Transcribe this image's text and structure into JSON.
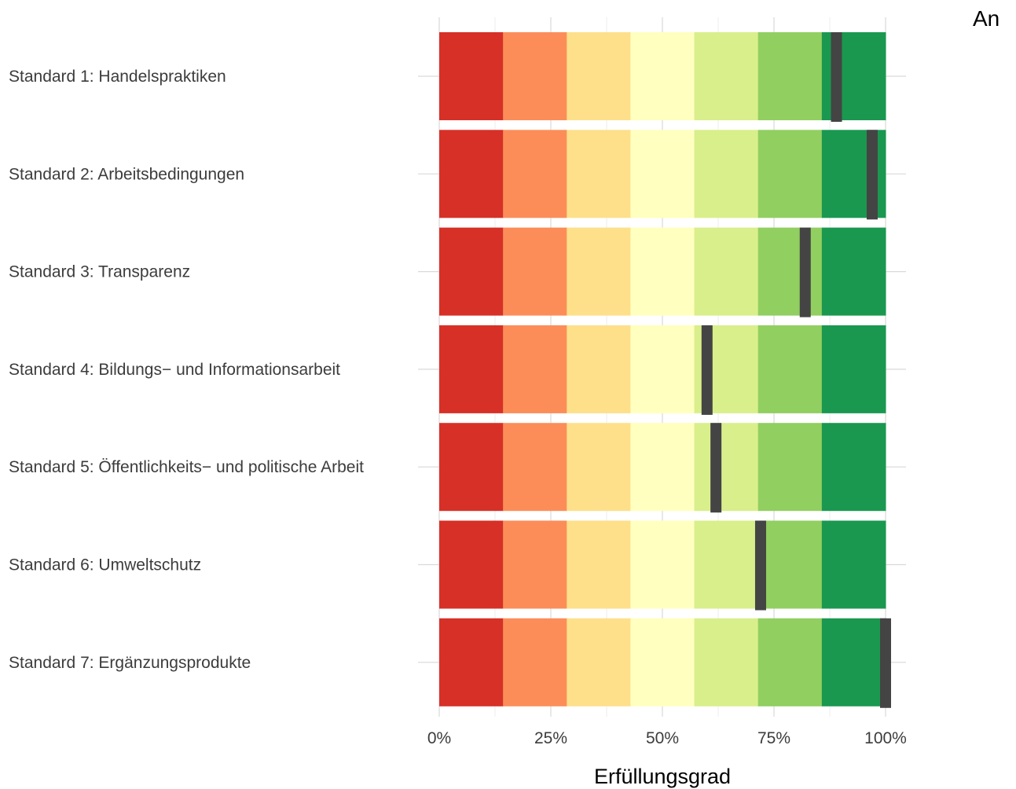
{
  "corner_text": "An",
  "chart_data": {
    "type": "bar",
    "orientation": "horizontal",
    "title": "",
    "xlabel": "Erfüllungsgrad",
    "ylabel": "",
    "xlim": [
      0,
      100
    ],
    "x_ticks": [
      0,
      25,
      50,
      75,
      100
    ],
    "x_tick_labels": [
      "0%",
      "25%",
      "50%",
      "75%",
      "100%"
    ],
    "grid": true,
    "categories": [
      "Standard 1: Handelspraktiken",
      "Standard 2: Arbeitsbedingungen",
      "Standard 3: Transparenz",
      "Standard 4: Bildungs− und Informationsarbeit",
      "Standard 5: Öffentlichkeits− und politische Arbeit",
      "Standard 6: Umweltschutz",
      "Standard 7: Ergänzungsprodukte"
    ],
    "values": [
      89,
      97,
      82,
      60,
      62,
      72,
      100
    ],
    "band_colors": [
      "#d73027",
      "#fc8d59",
      "#fee08b",
      "#ffffbf",
      "#d9ef8b",
      "#91cf60",
      "#1a9850"
    ],
    "marker_color": "#444444"
  }
}
